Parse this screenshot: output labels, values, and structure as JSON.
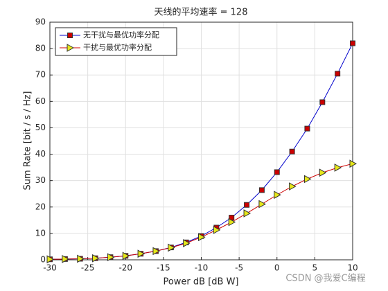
{
  "chart_data": {
    "type": "line",
    "title": "天线的平均速率 = 128",
    "x_label": "Power dB [dB W]",
    "y_label": "Sum Rate [bit / s / Hz]",
    "x": [
      -30,
      -28,
      -26,
      -24,
      -22,
      -20,
      -18,
      -16,
      -14,
      -12,
      -10,
      -8,
      -6,
      -4,
      -2,
      0,
      2,
      4,
      6,
      8,
      10
    ],
    "series": [
      {
        "name": "无干扰与最优功率分配",
        "color": "#0000cc",
        "marker": "square",
        "marker_color": "#cc0000",
        "values": [
          0.2,
          0.3,
          0.4,
          0.6,
          1.0,
          1.5,
          2.3,
          3.3,
          4.7,
          6.6,
          9.0,
          12.2,
          16.0,
          20.8,
          26.4,
          33.2,
          41.0,
          49.7,
          59.7,
          70.5,
          82.0
        ]
      },
      {
        "name": "干扰与最优功率分配",
        "color": "#cc0000",
        "marker": "triangle-right",
        "marker_color": "#e6e619",
        "values": [
          0.2,
          0.3,
          0.4,
          0.6,
          1.0,
          1.5,
          2.3,
          3.3,
          4.6,
          6.3,
          8.6,
          11.3,
          14.3,
          17.6,
          21.1,
          24.6,
          27.8,
          30.6,
          33.0,
          34.9,
          36.4
        ]
      }
    ],
    "xlim": [
      -30,
      10
    ],
    "xticks": [
      -30,
      -25,
      -20,
      -15,
      -10,
      -5,
      0,
      5,
      10
    ],
    "ylim": [
      0,
      90
    ],
    "yticks": [
      0,
      10,
      20,
      30,
      40,
      50,
      60,
      70,
      80,
      90
    ],
    "grid": true,
    "legend": "top-left"
  },
  "watermark": "CSDN @我爱C编程"
}
